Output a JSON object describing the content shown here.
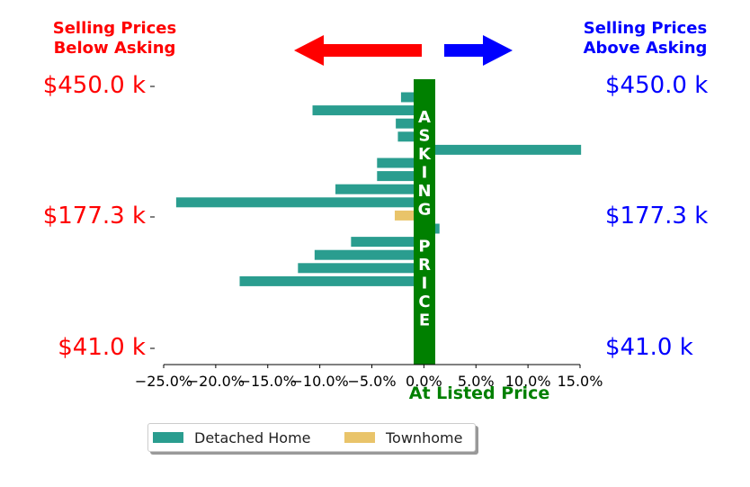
{
  "header": {
    "left_line1": "Selling Prices",
    "left_line2": "Below Asking",
    "right_line1": "Selling Prices",
    "right_line2": "Above Asking"
  },
  "colors": {
    "left_text": "#ff0000",
    "right_text": "#0000ff",
    "asking_band": "#008000",
    "detached": "#2a9d8f",
    "townhome": "#e9c46a"
  },
  "icons": [
    "left-arrow-icon",
    "right-arrow-icon"
  ],
  "vertical_label": [
    "A",
    "S",
    "K",
    "I",
    "N",
    "G",
    "",
    "P",
    "R",
    "I",
    "C",
    "E"
  ],
  "y_labels_left": [
    "$450.0 k",
    "$177.3 k",
    "$41.0 k"
  ],
  "y_labels_right": [
    "$450.0 k",
    "$177.3 k",
    "$41.0 k"
  ],
  "chart_data": {
    "type": "bar",
    "orientation": "horizontal",
    "xlabel": "At Listed Price",
    "xlim": [
      -0.25,
      0.15
    ],
    "xticks": [
      -0.25,
      -0.2,
      -0.15,
      -0.1,
      -0.05,
      0.0,
      0.05,
      0.1,
      0.15
    ],
    "xtick_labels": [
      "−25.0%",
      "−20.0%",
      "−15.0%",
      "−10.0%",
      "−5.0%",
      "0.0%",
      "5.0%",
      "10.0%",
      "15.0%"
    ],
    "y_tick_labels": [
      "$450.0 k",
      "$177.3 k",
      "$41.0 k"
    ],
    "legend": {
      "placement": "bottom-center",
      "entries": [
        "Detached Home",
        "Townhome"
      ]
    },
    "bars": [
      {
        "value": -0.022,
        "category": "Detached Home"
      },
      {
        "value": -0.107,
        "category": "Detached Home"
      },
      {
        "value": -0.027,
        "category": "Detached Home"
      },
      {
        "value": -0.025,
        "category": "Detached Home"
      },
      {
        "value": 0.151,
        "category": "Detached Home"
      },
      {
        "value": -0.045,
        "category": "Detached Home"
      },
      {
        "value": -0.045,
        "category": "Detached Home"
      },
      {
        "value": -0.085,
        "category": "Detached Home"
      },
      {
        "value": -0.238,
        "category": "Detached Home"
      },
      {
        "value": -0.028,
        "category": "Townhome"
      },
      {
        "value": 0.015,
        "category": "Detached Home"
      },
      {
        "value": -0.07,
        "category": "Detached Home"
      },
      {
        "value": -0.105,
        "category": "Detached Home"
      },
      {
        "value": -0.121,
        "category": "Detached Home"
      },
      {
        "value": -0.177,
        "category": "Detached Home"
      }
    ]
  }
}
